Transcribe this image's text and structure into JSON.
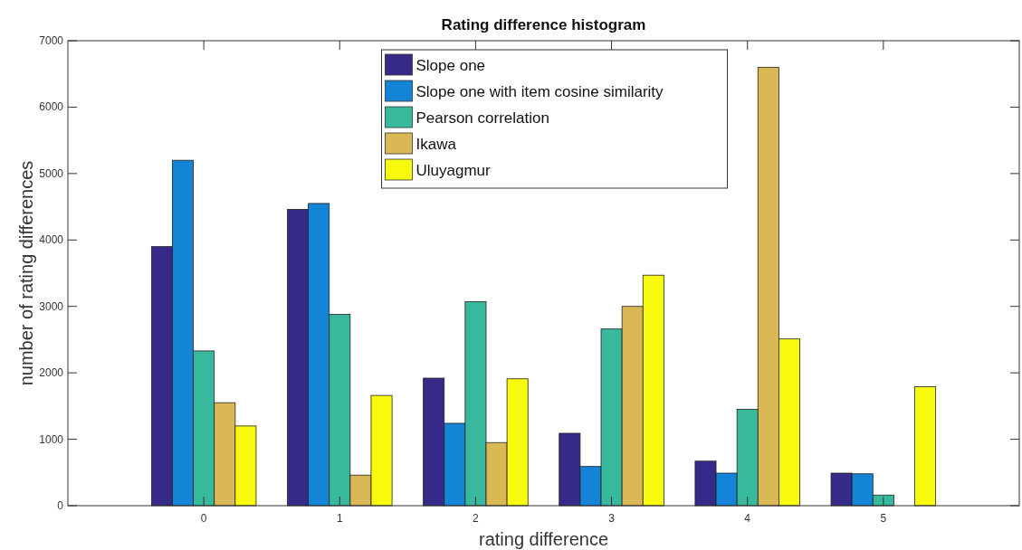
{
  "chart_data": {
    "type": "bar",
    "title": "Rating difference histogram",
    "xlabel": "rating difference",
    "ylabel": "number of rating differences",
    "x": [
      0,
      1,
      2,
      3,
      4,
      5
    ],
    "xlim": [
      -1,
      6
    ],
    "xticks": [
      0,
      1,
      2,
      3,
      4,
      5
    ],
    "ylim": [
      0,
      7000
    ],
    "yticks": [
      0,
      1000,
      2000,
      3000,
      4000,
      5000,
      6000,
      7000
    ],
    "grid": false,
    "legend": "top",
    "series": [
      {
        "name": "Slope one",
        "color": "#352a87",
        "values": [
          3900,
          4460,
          1920,
          1090,
          670,
          490
        ]
      },
      {
        "name": "Slope one with item cosine similarity",
        "color": "#1384d6",
        "values": [
          5200,
          4550,
          1240,
          590,
          490,
          480
        ]
      },
      {
        "name": "Pearson correlation",
        "color": "#38b99e",
        "values": [
          2330,
          2880,
          3070,
          2660,
          1450,
          160
        ]
      },
      {
        "name": "Ikawa",
        "color": "#d9b855",
        "values": [
          1550,
          460,
          950,
          3000,
          6600,
          0
        ]
      },
      {
        "name": "Uluyagmur",
        "color": "#f8fa0d",
        "values": [
          1200,
          1660,
          1910,
          3470,
          2510,
          1790
        ]
      }
    ]
  }
}
